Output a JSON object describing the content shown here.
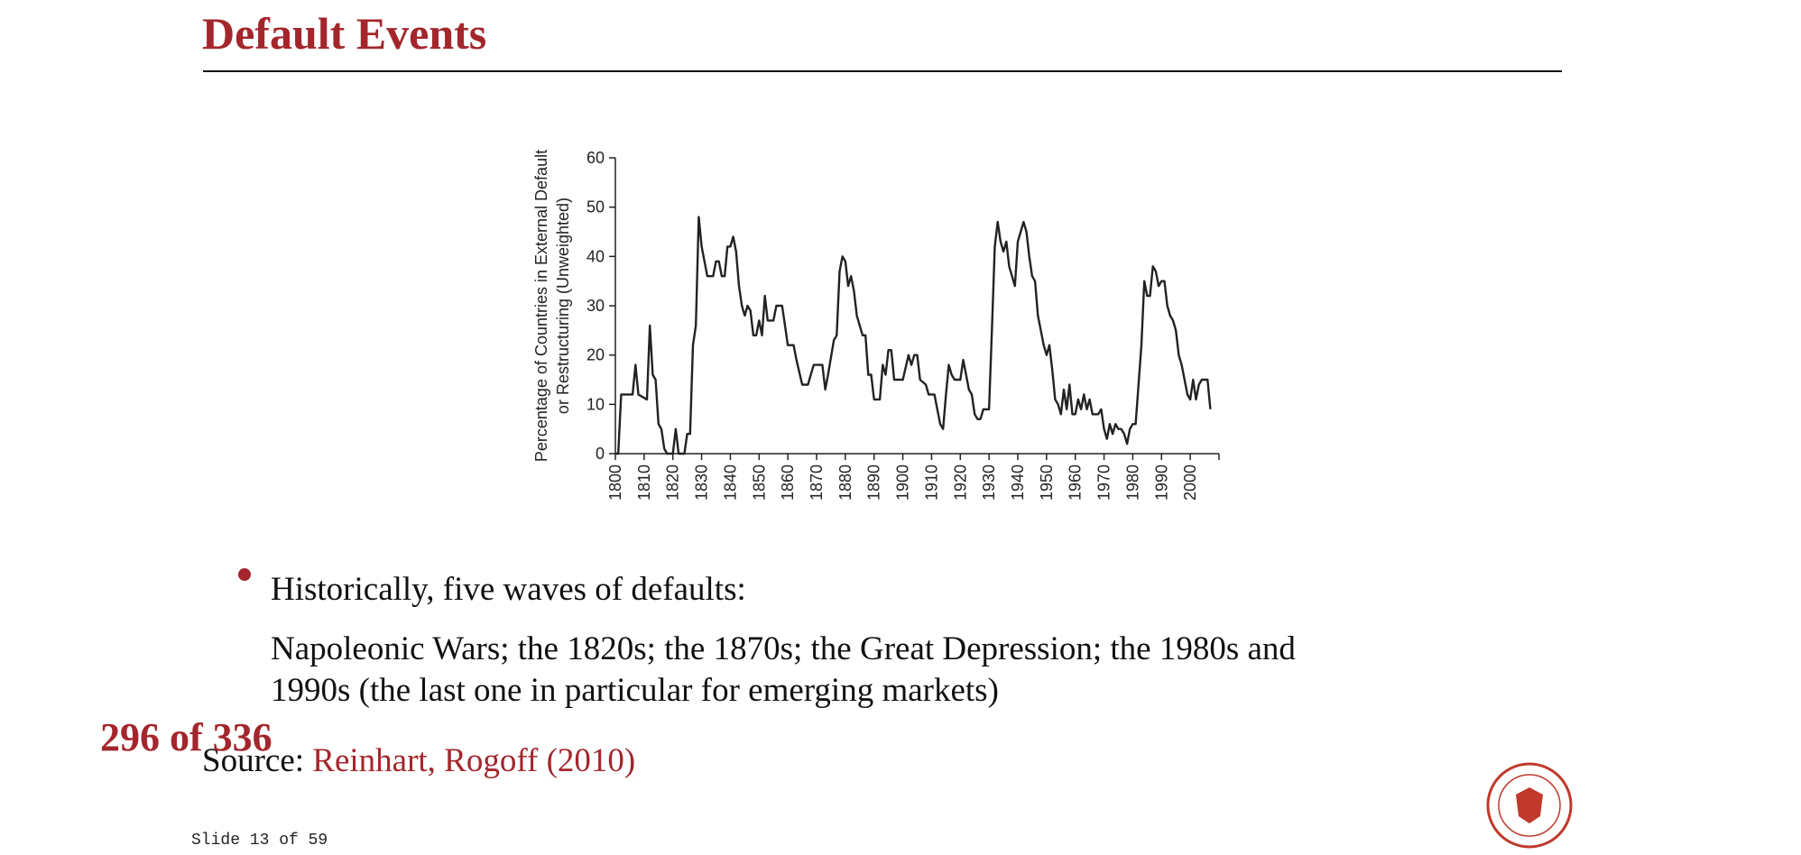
{
  "slide": {
    "title": "Default Events",
    "bullet": "Historically, five waves of defaults:",
    "paragraph": [
      "Napoleonic Wars; the 1820s; the 1870s; the Great Depression; the 1980s and",
      "1990s (the last one in particular for emerging markets)"
    ],
    "source_label": "Source:",
    "source_link": "Reinhart, Rogoff (2010)",
    "page_counter": "296 of 336",
    "slide_counter": "Slide 13 of 59"
  },
  "chart_data": {
    "type": "line",
    "ylabel": [
      "Percentage of Countries in External Default",
      "or Restructuring (Unweighted)"
    ],
    "xlim": [
      1800,
      2010
    ],
    "ylim": [
      0,
      60
    ],
    "xticks": [
      1800,
      1810,
      1820,
      1830,
      1840,
      1850,
      1860,
      1870,
      1880,
      1890,
      1900,
      1910,
      1920,
      1930,
      1940,
      1950,
      1960,
      1970,
      1980,
      1990,
      2000
    ],
    "yticks": [
      0,
      10,
      20,
      30,
      40,
      50,
      60
    ],
    "series": [
      {
        "color": "#222222",
        "x": [
          1800,
          1801,
          1802,
          1806,
          1807,
          1808,
          1811,
          1812,
          1813,
          1814,
          1815,
          1816,
          1817,
          1818,
          1820,
          1821,
          1822,
          1824,
          1825,
          1826,
          1827,
          1828,
          1829,
          1830,
          1832,
          1834,
          1835,
          1836,
          1837,
          1838,
          1839,
          1840,
          1841,
          1842,
          1843,
          1844,
          1845,
          1846,
          1847,
          1848,
          1849,
          1850,
          1851,
          1852,
          1853,
          1855,
          1856,
          1858,
          1859,
          1860,
          1862,
          1863,
          1865,
          1867,
          1869,
          1872,
          1873,
          1874,
          1876,
          1877,
          1878,
          1879,
          1880,
          1881,
          1882,
          1883,
          1884,
          1886,
          1887,
          1888,
          1889,
          1890,
          1892,
          1893,
          1894,
          1895,
          1896,
          1897,
          1900,
          1902,
          1903,
          1904,
          1905,
          1906,
          1908,
          1909,
          1911,
          1912,
          1913,
          1914,
          1915,
          1916,
          1917,
          1918,
          1920,
          1921,
          1922,
          1923,
          1924,
          1925,
          1926,
          1927,
          1928,
          1930,
          1931,
          1932,
          1933,
          1934,
          1935,
          1936,
          1937,
          1938,
          1939,
          1940,
          1941,
          1942,
          1943,
          1944,
          1945,
          1946,
          1947,
          1948,
          1949,
          1950,
          1951,
          1952,
          1953,
          1954,
          1955,
          1956,
          1957,
          1958,
          1959,
          1960,
          1961,
          1962,
          1963,
          1964,
          1965,
          1966,
          1968,
          1969,
          1970,
          1971,
          1972,
          1973,
          1974,
          1975,
          1976,
          1977,
          1978,
          1979,
          1980,
          1981,
          1982,
          1983,
          1984,
          1985,
          1986,
          1987,
          1988,
          1989,
          1990,
          1991,
          1992,
          1993,
          1994,
          1995,
          1996,
          1997,
          1998,
          1999,
          2000,
          2001,
          2002,
          2003,
          2004,
          2005,
          2006,
          2007
        ],
        "values": [
          0,
          0,
          12,
          12,
          18,
          12,
          11,
          26,
          16,
          15,
          6,
          5,
          1,
          0,
          0,
          5,
          0,
          0,
          4,
          4,
          22,
          26,
          48,
          42,
          36,
          36,
          39,
          39,
          36,
          36,
          42,
          42,
          44,
          41,
          34,
          30,
          28,
          30,
          29,
          24,
          24,
          27,
          24,
          32,
          27,
          27,
          30,
          30,
          26,
          22,
          22,
          19,
          14,
          14,
          18,
          18,
          13,
          16,
          23,
          24,
          37,
          40,
          39,
          34,
          36,
          33,
          28,
          24,
          24,
          16,
          16,
          11,
          11,
          18,
          16,
          21,
          21,
          15,
          15,
          20,
          18,
          20,
          20,
          15,
          14,
          12,
          12,
          9,
          6,
          5,
          12,
          18,
          16,
          15,
          15,
          19,
          16,
          13,
          12,
          8,
          7,
          7,
          9,
          9,
          25,
          42,
          47,
          43,
          41,
          43,
          38,
          36,
          34,
          43,
          45,
          47,
          45,
          40,
          36,
          35,
          28,
          25,
          22,
          20,
          22,
          17,
          11,
          10,
          8,
          13,
          9,
          14,
          8,
          8,
          11,
          9,
          12,
          9,
          11,
          8,
          8,
          9,
          5,
          3,
          6,
          4,
          6,
          5,
          5,
          4,
          2,
          5,
          6,
          6,
          14,
          22,
          35,
          32,
          32,
          38,
          37,
          34,
          35,
          35,
          30,
          28,
          27,
          25,
          20,
          18,
          15,
          12,
          11,
          15,
          11,
          14,
          15,
          15,
          15,
          9
        ]
      }
    ]
  }
}
